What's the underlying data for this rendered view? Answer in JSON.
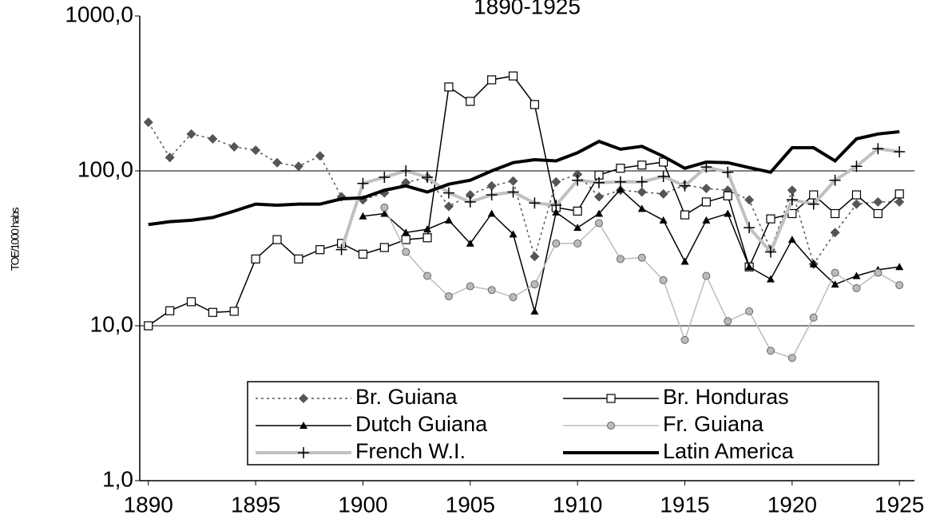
{
  "chart_data": {
    "type": "line",
    "title": "1890-1925",
    "ylabel": "TOE/1000 habs",
    "log_y": true,
    "grid": true,
    "legend": "bottom",
    "xlim": [
      1889.6,
      1925.7
    ],
    "xticks": [
      1890,
      1895,
      1900,
      1905,
      1910,
      1915,
      1920,
      1925
    ],
    "ylim": [
      1,
      1000
    ],
    "yticks": [
      {
        "value": 1,
        "label": "1,0"
      },
      {
        "value": 10,
        "label": "10,0"
      },
      {
        "value": 100,
        "label": "100,0"
      },
      {
        "value": 1000,
        "label": "1000,0"
      }
    ],
    "x": [
      1890,
      1891,
      1892,
      1893,
      1894,
      1895,
      1896,
      1897,
      1898,
      1899,
      1900,
      1901,
      1902,
      1903,
      1904,
      1905,
      1906,
      1907,
      1908,
      1909,
      1910,
      1911,
      1912,
      1913,
      1914,
      1915,
      1916,
      1917,
      1918,
      1919,
      1920,
      1921,
      1922,
      1923,
      1924,
      1925
    ],
    "series": [
      {
        "name": "Br. Guiana",
        "color": "#555555",
        "marker": "diamond",
        "dash": "dotted",
        "width": 1.5,
        "values": [
          206,
          122,
          173,
          161,
          143,
          136,
          113,
          107,
          125,
          68,
          65,
          72,
          84,
          91,
          59,
          70,
          80,
          86,
          28,
          85,
          95,
          68,
          75,
          73,
          71,
          81,
          77,
          75,
          65,
          31,
          75,
          25,
          40,
          61,
          63,
          63
        ]
      },
      {
        "name": "Br. Honduras",
        "color": "#000000",
        "marker": "square",
        "dash": "solid",
        "width": 1.5,
        "values": [
          10,
          12.5,
          14.3,
          12.2,
          12.4,
          27,
          36,
          27,
          31,
          34,
          29,
          32,
          36,
          37,
          348,
          281,
          387,
          410,
          268,
          58,
          55,
          94,
          104,
          109,
          114,
          52,
          63,
          69,
          24,
          49,
          53,
          70,
          53,
          70,
          53,
          71
        ]
      },
      {
        "name": "Dutch Guiana",
        "color": "#000000",
        "marker": "triangle",
        "dash": "solid",
        "width": 1.5,
        "values": [
          null,
          null,
          null,
          null,
          null,
          null,
          null,
          null,
          null,
          null,
          51,
          53,
          40,
          42,
          48,
          34,
          53,
          39,
          12.4,
          54,
          43,
          53,
          76,
          57,
          48,
          26,
          48,
          53,
          24,
          20,
          36,
          25,
          18.5,
          21,
          23,
          24
        ]
      },
      {
        "name": "Fr. Guiana",
        "color": "#bbbbbb",
        "marker": "circle",
        "dash": "solid",
        "width": 1.5,
        "values": [
          null,
          null,
          null,
          null,
          null,
          null,
          null,
          null,
          null,
          null,
          null,
          58,
          30,
          21,
          15.5,
          18,
          17,
          15.3,
          18.5,
          34,
          34,
          46,
          27,
          27.5,
          19.7,
          8.1,
          21,
          10.7,
          12.4,
          6.9,
          6.2,
          11.3,
          22,
          17.5,
          22,
          18.3
        ]
      },
      {
        "name": "French W.I.",
        "color": "#c0c0c0",
        "marker": "plus",
        "dash": "solid",
        "width": 4,
        "values": [
          null,
          null,
          null,
          null,
          null,
          null,
          null,
          null,
          null,
          31,
          83,
          91,
          100,
          91,
          72,
          63,
          70,
          73,
          62,
          60,
          87,
          84,
          85,
          85,
          92,
          80,
          106,
          98,
          43,
          30,
          65,
          61,
          87,
          107,
          139,
          133
        ]
      },
      {
        "name": "Latin America",
        "color": "#000000",
        "marker": "none",
        "dash": "solid",
        "width": 4,
        "values": [
          45,
          47,
          48,
          50,
          55,
          61,
          60,
          61,
          61,
          66,
          67,
          75,
          80,
          73,
          82,
          87,
          100,
          113,
          118,
          116,
          131,
          155,
          138,
          144,
          124,
          104,
          114,
          113,
          105,
          98,
          141,
          141,
          116,
          161,
          173,
          179
        ]
      }
    ]
  }
}
